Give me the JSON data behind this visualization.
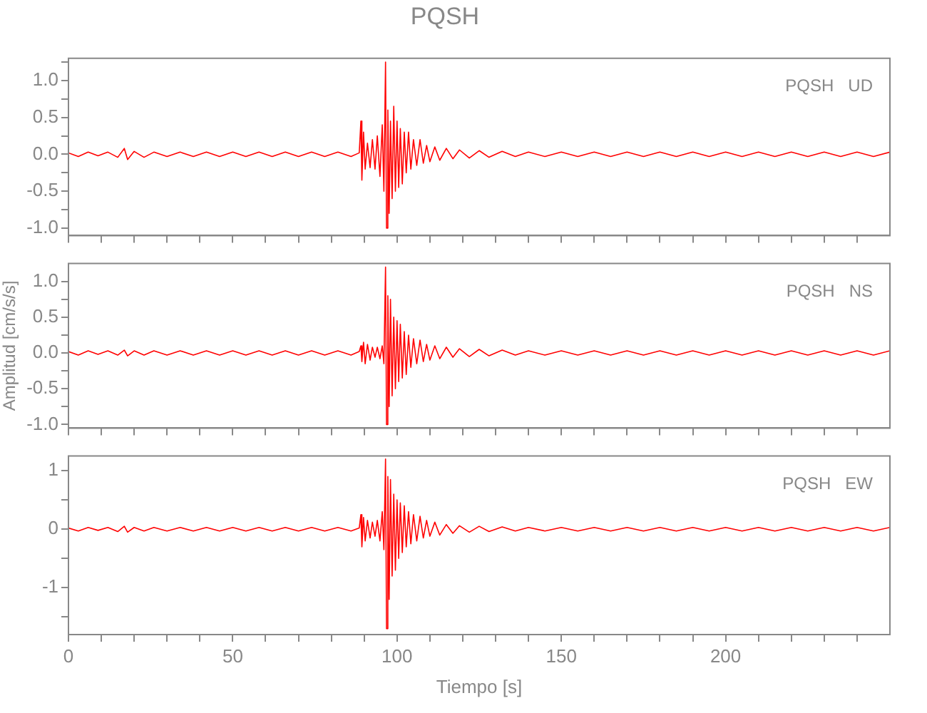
{
  "chart_data": [
    {
      "type": "line",
      "title": "PQSH",
      "annotations": [
        "PQSH   UD"
      ],
      "tick_labels": "y",
      "x": [
        0,
        3,
        6,
        9,
        12,
        15,
        17,
        18,
        20,
        23,
        26,
        30,
        34,
        38,
        42,
        46,
        50,
        54,
        58,
        62,
        66,
        70,
        74,
        78,
        82,
        86,
        88.5,
        89,
        89.3,
        89.8,
        90.3,
        91,
        91.8,
        92.5,
        93.3,
        94,
        94.8,
        95.5,
        96,
        96.5,
        96.8,
        97.2,
        97.6,
        98,
        98.5,
        99,
        99.5,
        100,
        100.5,
        101,
        101.6,
        102.2,
        102.8,
        103.5,
        104.2,
        105,
        106,
        107,
        108,
        109,
        110,
        111.5,
        113,
        115,
        117,
        119,
        122,
        125,
        128,
        132,
        136,
        140,
        145,
        150,
        155,
        160,
        165,
        170,
        175,
        180,
        185,
        190,
        195,
        200,
        205,
        210,
        215,
        220,
        225,
        230,
        235,
        240,
        245,
        250
      ],
      "series": [
        {
          "color": "#ff0000",
          "values": [
            0.02,
            -0.03,
            0.03,
            -0.02,
            0.03,
            -0.04,
            0.08,
            -0.07,
            0.04,
            -0.04,
            0.03,
            -0.03,
            0.03,
            -0.03,
            0.03,
            -0.03,
            0.03,
            -0.03,
            0.03,
            -0.03,
            0.03,
            -0.03,
            0.03,
            -0.03,
            0.03,
            -0.03,
            0.02,
            0.45,
            -0.35,
            0.3,
            -0.2,
            0.15,
            -0.18,
            0.2,
            -0.2,
            0.25,
            -0.3,
            0.4,
            -0.5,
            1.25,
            -1.0,
            0.6,
            -0.8,
            0.45,
            -0.6,
            0.65,
            -0.5,
            0.45,
            -0.45,
            0.35,
            -0.4,
            0.3,
            -0.25,
            0.3,
            -0.2,
            0.2,
            -0.15,
            0.2,
            -0.12,
            0.12,
            -0.1,
            0.1,
            -0.08,
            0.08,
            -0.06,
            0.06,
            -0.05,
            0.05,
            -0.04,
            0.04,
            -0.03,
            0.03,
            -0.03,
            0.03,
            -0.03,
            0.03,
            -0.03,
            0.03,
            -0.03,
            0.03,
            -0.03,
            0.03,
            -0.03,
            0.03,
            -0.03,
            0.03,
            -0.03,
            0.03,
            -0.03,
            0.03,
            -0.03,
            0.03,
            -0.03,
            0.03
          ]
        }
      ],
      "xlim": [
        0,
        250
      ],
      "xticks": [
        0,
        {
          "value": 10,
          "label": null
        },
        {
          "value": 20,
          "label": null
        },
        {
          "value": 30,
          "label": null
        },
        {
          "value": 40,
          "label": null
        },
        50,
        {
          "value": 60,
          "label": null
        },
        {
          "value": 70,
          "label": null
        },
        {
          "value": 80,
          "label": null
        },
        {
          "value": 90,
          "label": null
        },
        100,
        {
          "value": 110,
          "label": null
        },
        {
          "value": 120,
          "label": null
        },
        {
          "value": 130,
          "label": null
        },
        {
          "value": 140,
          "label": null
        },
        150,
        {
          "value": 160,
          "label": null
        },
        {
          "value": 170,
          "label": null
        },
        {
          "value": 180,
          "label": null
        },
        {
          "value": 190,
          "label": null
        },
        200,
        {
          "value": 210,
          "label": null
        },
        {
          "value": 220,
          "label": null
        },
        {
          "value": 230,
          "label": null
        },
        {
          "value": 240,
          "label": null
        }
      ],
      "ylim": [
        -1.1,
        1.3
      ],
      "yticks": [
        {
          "value": -1,
          "label": "-1.0"
        },
        {
          "value": -0.75,
          "label": null
        },
        {
          "value": -0.5,
          "label": "-0.5"
        },
        {
          "value": -0.25,
          "label": null
        },
        {
          "value": 0,
          "label": "0.0"
        },
        {
          "value": 0.25,
          "label": null
        },
        {
          "value": 0.5,
          "label": "0.5"
        },
        {
          "value": 0.75,
          "label": null
        },
        {
          "value": 1,
          "label": "1.0"
        },
        {
          "value": 1.25,
          "label": null
        }
      ]
    },
    {
      "type": "line",
      "ylabel": "Amplitud [cm/s/s]",
      "annotations": [
        "PQSH   NS"
      ],
      "tick_labels": "y",
      "x": [
        0,
        3,
        6,
        9,
        12,
        15,
        17,
        18,
        20,
        23,
        26,
        30,
        34,
        38,
        42,
        46,
        50,
        54,
        58,
        62,
        66,
        70,
        74,
        78,
        82,
        86,
        88.5,
        89,
        89.3,
        89.8,
        90.3,
        91,
        91.8,
        92.5,
        93.3,
        94,
        94.8,
        95.5,
        96,
        96.5,
        96.8,
        97.2,
        97.6,
        98,
        98.5,
        99,
        99.5,
        100,
        100.5,
        101,
        101.6,
        102.2,
        102.8,
        103.5,
        104.2,
        105,
        106,
        107,
        108,
        109,
        110,
        111.5,
        113,
        115,
        117,
        119,
        122,
        125,
        128,
        132,
        136,
        140,
        145,
        150,
        155,
        160,
        165,
        170,
        175,
        180,
        185,
        190,
        195,
        200,
        205,
        210,
        215,
        220,
        225,
        230,
        235,
        240,
        245,
        250
      ],
      "series": [
        {
          "color": "#ff0000",
          "values": [
            0.02,
            -0.03,
            0.03,
            -0.02,
            0.03,
            -0.03,
            0.04,
            -0.04,
            0.03,
            -0.03,
            0.03,
            -0.03,
            0.03,
            -0.03,
            0.03,
            -0.03,
            0.03,
            -0.03,
            0.03,
            -0.03,
            0.03,
            -0.03,
            0.03,
            -0.03,
            0.03,
            -0.03,
            0.02,
            0.1,
            -0.12,
            0.15,
            -0.15,
            0.12,
            -0.1,
            0.08,
            -0.06,
            0.08,
            -0.08,
            0.1,
            -0.15,
            1.2,
            -1.0,
            0.8,
            -0.75,
            0.75,
            -0.6,
            0.5,
            -0.5,
            0.45,
            -0.4,
            0.4,
            -0.35,
            0.3,
            -0.3,
            0.25,
            -0.2,
            0.2,
            -0.15,
            0.18,
            -0.12,
            0.12,
            -0.1,
            0.1,
            -0.08,
            0.08,
            -0.06,
            0.06,
            -0.05,
            0.05,
            -0.04,
            0.04,
            -0.03,
            0.03,
            -0.03,
            0.03,
            -0.03,
            0.03,
            -0.03,
            0.03,
            -0.03,
            0.03,
            -0.03,
            0.03,
            -0.03,
            0.03,
            -0.03,
            0.03,
            -0.03,
            0.03,
            -0.03,
            0.03,
            -0.03,
            0.03,
            -0.03,
            0.03
          ]
        }
      ],
      "xlim": [
        0,
        250
      ],
      "xticks": [
        0,
        {
          "value": 10,
          "label": null
        },
        {
          "value": 20,
          "label": null
        },
        {
          "value": 30,
          "label": null
        },
        {
          "value": 40,
          "label": null
        },
        50,
        {
          "value": 60,
          "label": null
        },
        {
          "value": 70,
          "label": null
        },
        {
          "value": 80,
          "label": null
        },
        {
          "value": 90,
          "label": null
        },
        100,
        {
          "value": 110,
          "label": null
        },
        {
          "value": 120,
          "label": null
        },
        {
          "value": 130,
          "label": null
        },
        {
          "value": 140,
          "label": null
        },
        150,
        {
          "value": 160,
          "label": null
        },
        {
          "value": 170,
          "label": null
        },
        {
          "value": 180,
          "label": null
        },
        {
          "value": 190,
          "label": null
        },
        200,
        {
          "value": 210,
          "label": null
        },
        {
          "value": 220,
          "label": null
        },
        {
          "value": 230,
          "label": null
        },
        {
          "value": 240,
          "label": null
        }
      ],
      "ylim": [
        -1.05,
        1.25
      ],
      "yticks": [
        {
          "value": -1,
          "label": "-1.0"
        },
        {
          "value": -0.75,
          "label": null
        },
        {
          "value": -0.5,
          "label": "-0.5"
        },
        {
          "value": -0.25,
          "label": null
        },
        {
          "value": 0,
          "label": "0.0"
        },
        {
          "value": 0.25,
          "label": null
        },
        {
          "value": 0.5,
          "label": "0.5"
        },
        {
          "value": 0.75,
          "label": null
        },
        {
          "value": 1,
          "label": "1.0"
        }
      ]
    },
    {
      "type": "line",
      "xlabel": "Tiempo [s]",
      "annotations": [
        "PQSH   EW"
      ],
      "x": [
        0,
        3,
        6,
        9,
        12,
        15,
        17,
        18,
        20,
        23,
        26,
        30,
        34,
        38,
        42,
        46,
        50,
        54,
        58,
        62,
        66,
        70,
        74,
        78,
        82,
        86,
        88.5,
        89,
        89.3,
        89.8,
        90.3,
        91,
        91.8,
        92.5,
        93.3,
        94,
        94.8,
        95.5,
        96,
        96.5,
        96.8,
        97.2,
        97.6,
        98,
        98.5,
        99,
        99.5,
        100,
        100.5,
        101,
        101.6,
        102.2,
        102.8,
        103.5,
        104.2,
        105,
        106,
        107,
        108,
        109,
        110,
        111.5,
        113,
        115,
        117,
        119,
        122,
        125,
        128,
        132,
        136,
        140,
        145,
        150,
        155,
        160,
        165,
        170,
        175,
        180,
        185,
        190,
        195,
        200,
        205,
        210,
        215,
        220,
        225,
        230,
        235,
        240,
        245,
        250
      ],
      "series": [
        {
          "color": "#ff0000",
          "values": [
            0.02,
            -0.03,
            0.03,
            -0.02,
            0.03,
            -0.04,
            0.05,
            -0.05,
            0.03,
            -0.03,
            0.03,
            -0.03,
            0.03,
            -0.03,
            0.03,
            -0.03,
            0.03,
            -0.03,
            0.03,
            -0.03,
            0.03,
            -0.03,
            0.03,
            -0.03,
            0.03,
            -0.03,
            0.02,
            0.25,
            -0.3,
            0.2,
            -0.2,
            0.15,
            -0.15,
            0.12,
            -0.12,
            0.15,
            -0.2,
            0.3,
            -0.35,
            1.2,
            -1.7,
            0.9,
            -1.2,
            0.85,
            -0.8,
            0.6,
            -0.7,
            0.5,
            -0.5,
            0.45,
            -0.4,
            0.4,
            -0.3,
            0.3,
            -0.25,
            0.25,
            -0.2,
            0.22,
            -0.15,
            0.15,
            -0.12,
            0.12,
            -0.1,
            0.08,
            -0.07,
            0.06,
            -0.05,
            0.05,
            -0.04,
            0.04,
            -0.03,
            0.03,
            -0.03,
            0.03,
            -0.03,
            0.03,
            -0.03,
            0.03,
            -0.03,
            0.03,
            -0.03,
            0.03,
            -0.03,
            0.03,
            -0.03,
            0.03,
            -0.03,
            0.03,
            -0.03,
            0.03,
            -0.03,
            0.03,
            -0.03,
            0.03
          ]
        }
      ],
      "xlim": [
        0,
        250
      ],
      "xticks": [
        0,
        {
          "value": 10,
          "label": null
        },
        {
          "value": 20,
          "label": null
        },
        {
          "value": 30,
          "label": null
        },
        {
          "value": 40,
          "label": null
        },
        50,
        {
          "value": 60,
          "label": null
        },
        {
          "value": 70,
          "label": null
        },
        {
          "value": 80,
          "label": null
        },
        {
          "value": 90,
          "label": null
        },
        100,
        {
          "value": 110,
          "label": null
        },
        {
          "value": 120,
          "label": null
        },
        {
          "value": 130,
          "label": null
        },
        {
          "value": 140,
          "label": null
        },
        150,
        {
          "value": 160,
          "label": null
        },
        {
          "value": 170,
          "label": null
        },
        {
          "value": 180,
          "label": null
        },
        {
          "value": 190,
          "label": null
        },
        200,
        {
          "value": 210,
          "label": null
        },
        {
          "value": 220,
          "label": null
        },
        {
          "value": 230,
          "label": null
        },
        {
          "value": 240,
          "label": null
        }
      ],
      "ylim": [
        -1.8,
        1.25
      ],
      "yticks": [
        {
          "value": -1.5,
          "label": null
        },
        -1,
        {
          "value": -0.5,
          "label": null
        },
        0,
        {
          "value": 0.5,
          "label": null
        },
        1
      ]
    }
  ]
}
